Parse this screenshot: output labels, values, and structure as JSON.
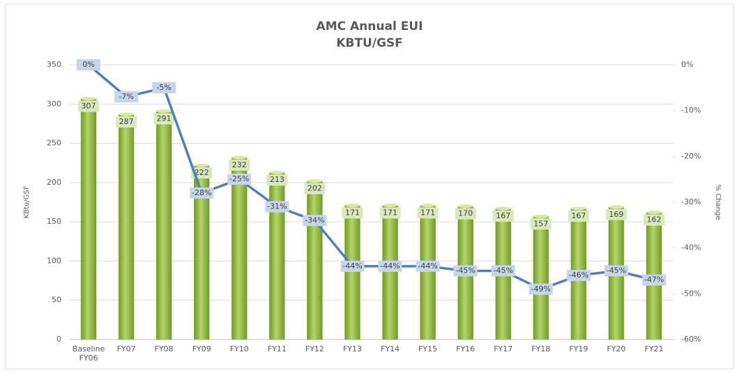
{
  "chart_data": {
    "type": "bar_line",
    "title": "AMC Annual EUI",
    "subtitle": "KBTU/GSF",
    "y_label": "KBtu/GSF",
    "y2_label": "% Change",
    "categories": [
      "Baseline FY06",
      "FY07",
      "FY08",
      "FY09",
      "FY10",
      "FY11",
      "FY12",
      "FY13",
      "FY14",
      "FY15",
      "FY16",
      "FY17",
      "FY18",
      "FY19",
      "FY20",
      "FY21"
    ],
    "series": [
      {
        "name": "EUI",
        "type": "bar",
        "color": "#8db544",
        "values": [
          307,
          287,
          291,
          222,
          232,
          213,
          202,
          171,
          171,
          171,
          170,
          167,
          157,
          167,
          169,
          162
        ]
      },
      {
        "name": "% Change",
        "type": "line",
        "axis": "y2",
        "color": "#4f7fbd",
        "values": [
          0,
          -7,
          -5,
          -28,
          -25,
          -31,
          -34,
          -44,
          -44,
          -44,
          -45,
          -45,
          -49,
          -46,
          -45,
          -47
        ],
        "value_labels": [
          "0%",
          "-7%",
          "-5%",
          "-28%",
          "-25%",
          "-31%",
          "-34%",
          "-44%",
          "-44%",
          "-44%",
          "-45%",
          "-45%",
          "-49%",
          "-46%",
          "-45%",
          "-47%"
        ]
      }
    ],
    "ylim": [
      0,
      350
    ],
    "yticks": [
      0,
      50,
      100,
      150,
      200,
      250,
      300,
      350
    ],
    "y2lim": [
      -60,
      0
    ],
    "y2ticks": [
      {
        "value": -60,
        "label": "-60%"
      },
      {
        "value": -50,
        "label": "-50%"
      },
      {
        "value": -40,
        "label": "-40%"
      },
      {
        "value": -30,
        "label": "-30%"
      },
      {
        "value": -20,
        "label": "-20%"
      },
      {
        "value": -10,
        "label": "-10%"
      },
      {
        "value": 0,
        "label": "0%"
      }
    ],
    "grid": true
  }
}
